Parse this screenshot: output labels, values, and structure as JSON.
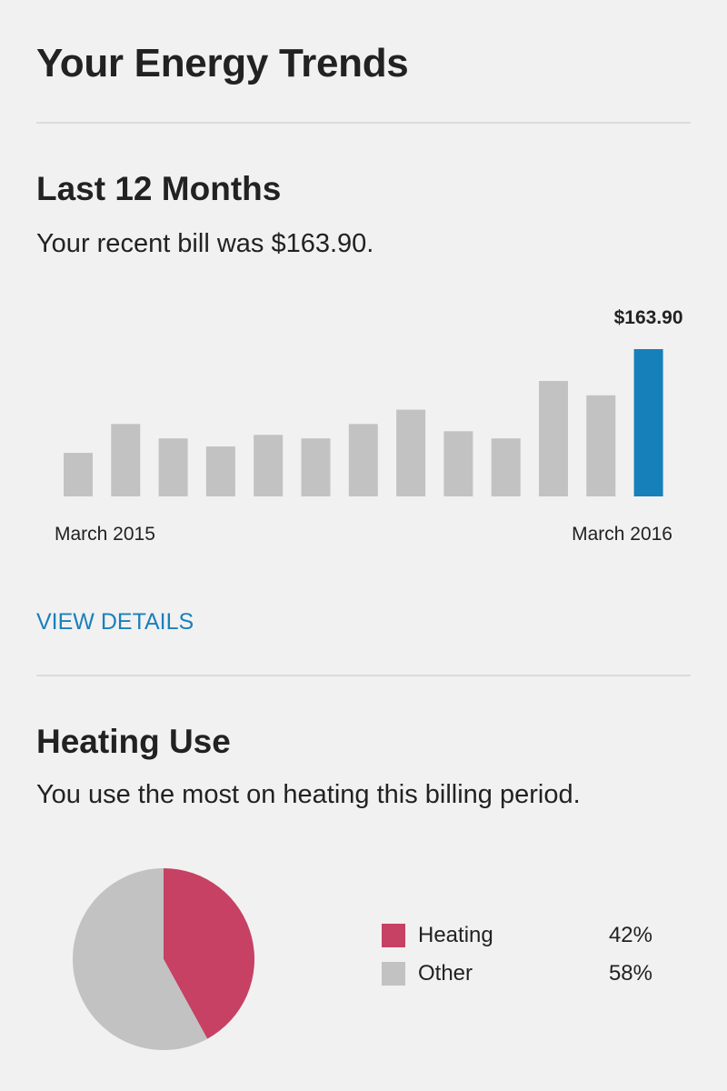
{
  "page": {
    "title": "Your Energy Trends"
  },
  "last12": {
    "title": "Last 12 Months",
    "summary": "Your recent bill was $163.90.",
    "highlight_label": "$163.90",
    "start_label": "March 2015",
    "end_label": "March 2016",
    "view_details": "VIEW DETAILS"
  },
  "heating": {
    "title": "Heating Use",
    "summary": "You use the most on heating this billing period.",
    "legend": [
      {
        "label": "Heating",
        "value": "42%",
        "color": "#c64163"
      },
      {
        "label": "Other",
        "value": "58%",
        "color": "#c2c2c2"
      }
    ]
  },
  "colors": {
    "bar_default": "#c2c2c2",
    "bar_highlight": "#1680bb",
    "link": "#1a80bb",
    "heating": "#c64163",
    "other": "#c2c2c2"
  },
  "chart_data": [
    {
      "type": "bar",
      "title": "",
      "xlabel": "",
      "ylabel": "",
      "categories": [
        "March 2015",
        "",
        "",
        "",
        "",
        "",
        "",
        "",
        "",
        "",
        "",
        "",
        "March 2016"
      ],
      "values": [
        48.5,
        80.5,
        64.5,
        55.5,
        68.5,
        64.5,
        80.5,
        96.5,
        72.5,
        64.5,
        128.5,
        112.5,
        163.9
      ],
      "highlight_index": 12,
      "highlight_label": "$163.90",
      "ylim": [
        0,
        163.9
      ],
      "grid": false,
      "legend": "none"
    },
    {
      "type": "pie",
      "title": "",
      "categories": [
        "Heating",
        "Other"
      ],
      "values": [
        42,
        58
      ],
      "colors": [
        "#c64163",
        "#c2c2c2"
      ],
      "legend": "right"
    }
  ]
}
